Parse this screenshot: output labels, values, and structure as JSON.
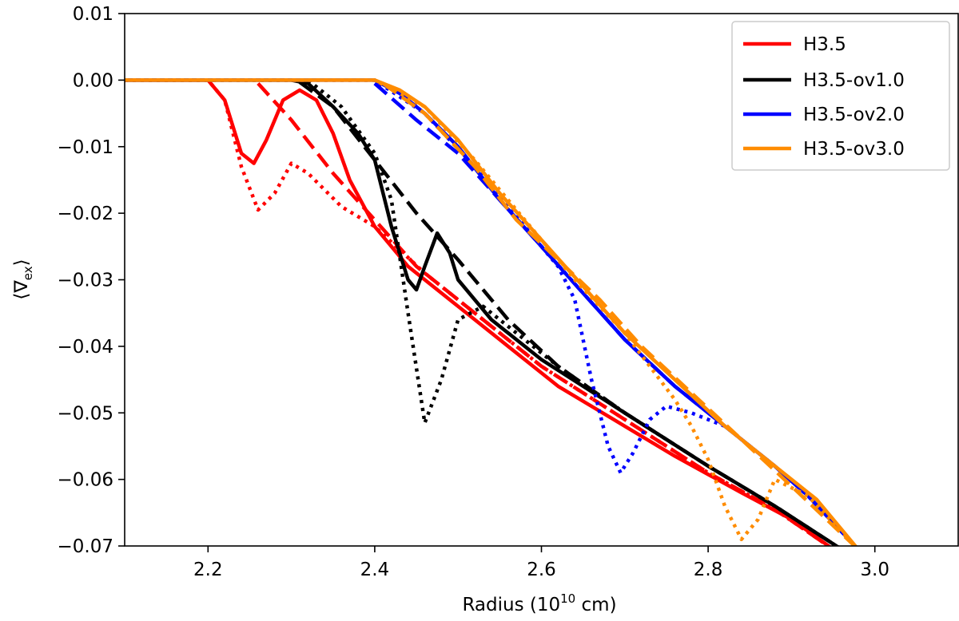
{
  "chart_data": {
    "type": "line",
    "title": "",
    "xlabel": {
      "prefix": "Radius (10",
      "sup": "10",
      "suffix": " cm)"
    },
    "ylabel": {
      "open": "⟨∇",
      "sub": "ex",
      "close": "⟩"
    },
    "xlim": [
      2.1,
      3.1
    ],
    "ylim": [
      -0.07,
      0.01
    ],
    "xticks": [
      2.2,
      2.4,
      2.6,
      2.8,
      3.0
    ],
    "xtick_labels": [
      "2.2",
      "2.4",
      "2.6",
      "2.8",
      "3.0"
    ],
    "yticks": [
      0.01,
      0.0,
      -0.01,
      -0.02,
      -0.03,
      -0.04,
      -0.05,
      -0.06,
      -0.07
    ],
    "ytick_labels": [
      "0.01",
      "0.00",
      "−0.01",
      "−0.02",
      "−0.03",
      "−0.04",
      "−0.05",
      "−0.06",
      "−0.07"
    ],
    "grid": false,
    "legend_position": "top-right",
    "legend": [
      "H3.5",
      "H3.5-ov1.0",
      "H3.5-ov2.0",
      "H3.5-ov3.0"
    ],
    "colors": {
      "H3.5": "#ff0000",
      "H3.5-ov1.0": "#000000",
      "H3.5-ov2.0": "#0000ff",
      "H3.5-ov3.0": "#ff8c00"
    },
    "series": [
      {
        "name": "H3.5",
        "color": "#ff0000",
        "style": "solid",
        "points": [
          [
            2.1,
            0
          ],
          [
            2.2,
            0
          ],
          [
            2.22,
            -0.003
          ],
          [
            2.24,
            -0.011
          ],
          [
            2.255,
            -0.0125
          ],
          [
            2.27,
            -0.009
          ],
          [
            2.29,
            -0.003
          ],
          [
            2.31,
            -0.0015
          ],
          [
            2.33,
            -0.003
          ],
          [
            2.35,
            -0.008
          ],
          [
            2.37,
            -0.015
          ],
          [
            2.4,
            -0.022
          ],
          [
            2.44,
            -0.028
          ],
          [
            2.5,
            -0.034
          ],
          [
            2.56,
            -0.04
          ],
          [
            2.62,
            -0.046
          ],
          [
            2.7,
            -0.052
          ],
          [
            2.76,
            -0.0565
          ],
          [
            2.84,
            -0.062
          ],
          [
            2.9,
            -0.066
          ],
          [
            2.95,
            -0.0705
          ]
        ]
      },
      {
        "name": "H3.5",
        "color": "#ff0000",
        "style": "dashed",
        "points": [
          [
            2.26,
            -0.0005
          ],
          [
            2.3,
            -0.006
          ],
          [
            2.35,
            -0.014
          ],
          [
            2.4,
            -0.021
          ],
          [
            2.45,
            -0.028
          ],
          [
            2.5,
            -0.033
          ],
          [
            2.6,
            -0.043
          ],
          [
            2.7,
            -0.051
          ],
          [
            2.8,
            -0.059
          ],
          [
            2.88,
            -0.0645
          ],
          [
            2.95,
            -0.0705
          ]
        ]
      },
      {
        "name": "H3.5",
        "color": "#ff0000",
        "style": "dotted",
        "points": [
          [
            2.1,
            0
          ],
          [
            2.2,
            0
          ],
          [
            2.22,
            -0.003
          ],
          [
            2.24,
            -0.013
          ],
          [
            2.26,
            -0.0195
          ],
          [
            2.28,
            -0.017
          ],
          [
            2.3,
            -0.0125
          ],
          [
            2.32,
            -0.014
          ],
          [
            2.36,
            -0.019
          ],
          [
            2.4,
            -0.022
          ],
          [
            2.46,
            -0.029
          ],
          [
            2.52,
            -0.035
          ],
          [
            2.6,
            -0.043
          ],
          [
            2.7,
            -0.051
          ],
          [
            2.8,
            -0.059
          ],
          [
            2.88,
            -0.0645
          ],
          [
            2.95,
            -0.0705
          ]
        ]
      },
      {
        "name": "H3.5-ov1.0",
        "color": "#000000",
        "style": "solid",
        "points": [
          [
            2.1,
            0
          ],
          [
            2.3,
            0
          ],
          [
            2.32,
            -0.0005
          ],
          [
            2.35,
            -0.004
          ],
          [
            2.38,
            -0.008
          ],
          [
            2.4,
            -0.012
          ],
          [
            2.42,
            -0.022
          ],
          [
            2.44,
            -0.03
          ],
          [
            2.45,
            -0.0315
          ],
          [
            2.46,
            -0.028
          ],
          [
            2.475,
            -0.023
          ],
          [
            2.49,
            -0.026
          ],
          [
            2.5,
            -0.03
          ],
          [
            2.54,
            -0.036
          ],
          [
            2.6,
            -0.042
          ],
          [
            2.7,
            -0.05
          ],
          [
            2.8,
            -0.058
          ],
          [
            2.88,
            -0.064
          ],
          [
            2.96,
            -0.0705
          ]
        ]
      },
      {
        "name": "H3.5-ov1.0",
        "color": "#000000",
        "style": "dashed",
        "points": [
          [
            2.31,
            -0.0003
          ],
          [
            2.35,
            -0.004
          ],
          [
            2.4,
            -0.012
          ],
          [
            2.45,
            -0.02
          ],
          [
            2.5,
            -0.027
          ],
          [
            2.56,
            -0.036
          ],
          [
            2.62,
            -0.043
          ],
          [
            2.7,
            -0.05
          ],
          [
            2.8,
            -0.058
          ],
          [
            2.88,
            -0.064
          ],
          [
            2.96,
            -0.0705
          ]
        ]
      },
      {
        "name": "H3.5-ov1.0",
        "color": "#000000",
        "style": "dotted",
        "points": [
          [
            2.1,
            0
          ],
          [
            2.32,
            0
          ],
          [
            2.36,
            -0.004
          ],
          [
            2.4,
            -0.011
          ],
          [
            2.42,
            -0.018
          ],
          [
            2.44,
            -0.035
          ],
          [
            2.46,
            -0.0515
          ],
          [
            2.48,
            -0.045
          ],
          [
            2.5,
            -0.036
          ],
          [
            2.53,
            -0.034
          ],
          [
            2.56,
            -0.037
          ],
          [
            2.62,
            -0.043
          ],
          [
            2.7,
            -0.05
          ],
          [
            2.8,
            -0.058
          ],
          [
            2.88,
            -0.064
          ],
          [
            2.96,
            -0.0705
          ]
        ]
      },
      {
        "name": "H3.5-ov2.0",
        "color": "#0000ff",
        "style": "solid",
        "points": [
          [
            2.1,
            0
          ],
          [
            2.4,
            0
          ],
          [
            2.43,
            -0.002
          ],
          [
            2.46,
            -0.005
          ],
          [
            2.5,
            -0.01
          ],
          [
            2.55,
            -0.018
          ],
          [
            2.6,
            -0.025
          ],
          [
            2.65,
            -0.032
          ],
          [
            2.7,
            -0.039
          ],
          [
            2.76,
            -0.046
          ],
          [
            2.82,
            -0.052
          ],
          [
            2.88,
            -0.058
          ],
          [
            2.92,
            -0.0625
          ],
          [
            2.98,
            -0.0705
          ]
        ]
      },
      {
        "name": "H3.5-ov2.0",
        "color": "#0000ff",
        "style": "dashed",
        "points": [
          [
            2.4,
            -0.0005
          ],
          [
            2.45,
            -0.006
          ],
          [
            2.5,
            -0.011
          ],
          [
            2.55,
            -0.018
          ],
          [
            2.6,
            -0.025
          ],
          [
            2.65,
            -0.032
          ],
          [
            2.7,
            -0.039
          ],
          [
            2.76,
            -0.046
          ],
          [
            2.82,
            -0.052
          ],
          [
            2.88,
            -0.058
          ],
          [
            2.92,
            -0.0625
          ],
          [
            2.98,
            -0.0705
          ]
        ]
      },
      {
        "name": "H3.5-ov2.0",
        "color": "#0000ff",
        "style": "dotted",
        "points": [
          [
            2.1,
            0
          ],
          [
            2.4,
            0
          ],
          [
            2.46,
            -0.005
          ],
          [
            2.52,
            -0.013
          ],
          [
            2.58,
            -0.022
          ],
          [
            2.62,
            -0.028
          ],
          [
            2.64,
            -0.033
          ],
          [
            2.66,
            -0.045
          ],
          [
            2.68,
            -0.055
          ],
          [
            2.695,
            -0.059
          ],
          [
            2.71,
            -0.056
          ],
          [
            2.73,
            -0.051
          ],
          [
            2.75,
            -0.049
          ],
          [
            2.78,
            -0.05
          ],
          [
            2.82,
            -0.052
          ],
          [
            2.88,
            -0.058
          ],
          [
            2.92,
            -0.0625
          ],
          [
            2.98,
            -0.0705
          ]
        ]
      },
      {
        "name": "H3.5-ov3.0",
        "color": "#ff8c00",
        "style": "solid",
        "points": [
          [
            2.1,
            0
          ],
          [
            2.4,
            0
          ],
          [
            2.43,
            -0.0015
          ],
          [
            2.46,
            -0.004
          ],
          [
            2.5,
            -0.009
          ],
          [
            2.55,
            -0.017
          ],
          [
            2.6,
            -0.024
          ],
          [
            2.65,
            -0.031
          ],
          [
            2.7,
            -0.038
          ],
          [
            2.76,
            -0.045
          ],
          [
            2.82,
            -0.052
          ],
          [
            2.88,
            -0.058
          ],
          [
            2.93,
            -0.063
          ],
          [
            2.98,
            -0.0705
          ]
        ]
      },
      {
        "name": "H3.5-ov3.0",
        "color": "#ff8c00",
        "style": "dashed",
        "points": [
          [
            2.41,
            -0.0005
          ],
          [
            2.46,
            -0.005
          ],
          [
            2.52,
            -0.013
          ],
          [
            2.57,
            -0.021
          ],
          [
            2.62,
            -0.027
          ],
          [
            2.67,
            -0.033
          ],
          [
            2.72,
            -0.04
          ],
          [
            2.78,
            -0.047
          ],
          [
            2.84,
            -0.054
          ],
          [
            2.9,
            -0.061
          ],
          [
            2.98,
            -0.0705
          ]
        ]
      },
      {
        "name": "H3.5-ov3.0",
        "color": "#ff8c00",
        "style": "dotted",
        "points": [
          [
            2.1,
            0
          ],
          [
            2.4,
            0
          ],
          [
            2.46,
            -0.004
          ],
          [
            2.52,
            -0.012
          ],
          [
            2.58,
            -0.021
          ],
          [
            2.64,
            -0.03
          ],
          [
            2.7,
            -0.038
          ],
          [
            2.76,
            -0.048
          ],
          [
            2.78,
            -0.052
          ],
          [
            2.8,
            -0.057
          ],
          [
            2.82,
            -0.064
          ],
          [
            2.84,
            -0.069
          ],
          [
            2.86,
            -0.066
          ],
          [
            2.88,
            -0.06
          ],
          [
            2.92,
            -0.0625
          ],
          [
            2.98,
            -0.0705
          ]
        ]
      }
    ]
  }
}
